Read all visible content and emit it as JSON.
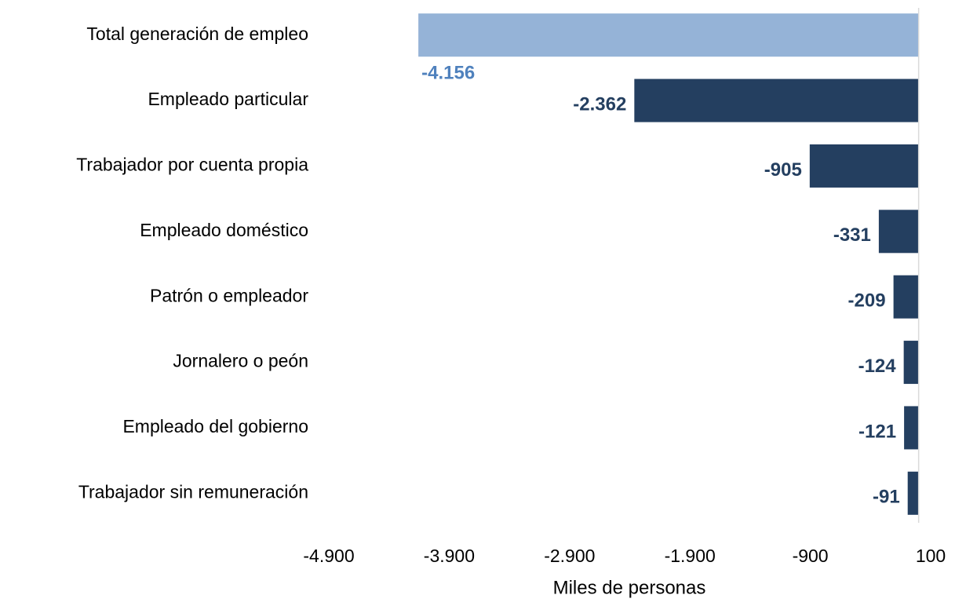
{
  "chart_data": {
    "type": "barh",
    "categories": [
      "Total generación de empleo",
      "Empleado particular",
      "Trabajador por cuenta propia",
      "Empleado doméstico",
      "Patrón o empleador",
      "Jornalero o peón",
      "Empleado del gobierno",
      "Trabajador sin remuneración"
    ],
    "values": [
      -4156,
      -2362,
      -905,
      -331,
      -209,
      -124,
      -121,
      -91
    ],
    "value_labels": [
      "-4.156",
      "-2.362",
      "-905",
      "-331",
      "-209",
      "-124",
      "-121",
      "-91"
    ],
    "colors": [
      "#95b3d7",
      "#243f60",
      "#243f60",
      "#243f60",
      "#243f60",
      "#243f60",
      "#243f60",
      "#243f60"
    ],
    "value_label_colors": [
      "#4f81bd",
      "#243f60",
      "#243f60",
      "#243f60",
      "#243f60",
      "#243f60",
      "#243f60",
      "#243f60"
    ],
    "xlabel": "Miles de personas",
    "xlim": [
      -4900,
      100
    ],
    "xticks": [
      {
        "value": -4900,
        "label": "-4.900"
      },
      {
        "value": -3900,
        "label": "-3.900"
      },
      {
        "value": -2900,
        "label": "-2.900"
      },
      {
        "value": -1900,
        "label": "-1.900"
      },
      {
        "value": -900,
        "label": "-900"
      },
      100
    ],
    "grid": false
  }
}
